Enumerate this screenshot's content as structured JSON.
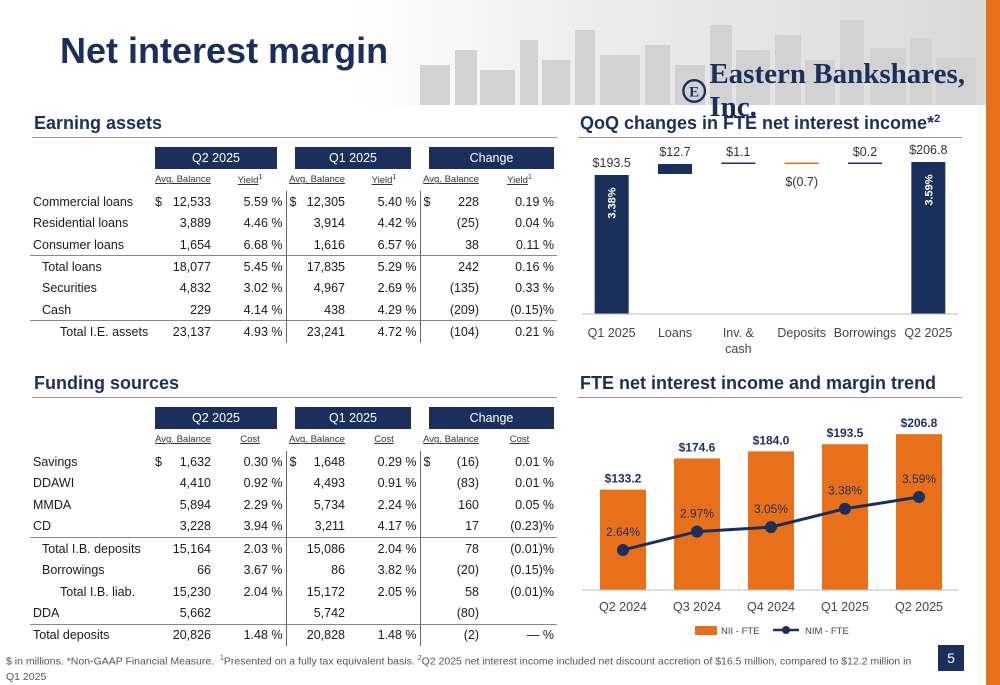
{
  "page": {
    "title": "Net interest margin",
    "brand": "Eastern Bankshares, Inc.",
    "page_number": "5",
    "footnote_1": "$ in millions. *Non-GAAP Financial Measure.",
    "footnote_2": "Presented on a fully tax equivalent basis.",
    "footnote_3": "Q2 2025 net interest income included net discount accretion of $16.5 million, compared to $12.2 million in Q1 2025",
    "colors": {
      "navy": "#1b2f5c",
      "orange": "#e8701a"
    }
  },
  "earning": {
    "title": "Earning assets",
    "periods": [
      "Q2 2025",
      "Q1 2025",
      "Change"
    ],
    "sub": [
      "Avg. Balance",
      "Yield",
      "Avg. Balance",
      "Yield",
      "Avg. Balance",
      "Yield"
    ],
    "rows": [
      {
        "label": "Commercial loans",
        "c1": "$",
        "v1": "12,533",
        "v2": "5.59 %",
        "c3": "$",
        "v3": "12,305",
        "v4": "5.40 %",
        "c5": "$",
        "v5": "228",
        "v6": "0.19 %"
      },
      {
        "label": "Residential loans",
        "c1": "",
        "v1": "3,889",
        "v2": "4.46 %",
        "c3": "",
        "v3": "3,914",
        "v4": "4.42 %",
        "c5": "",
        "v5": "(25)",
        "v6": "0.04 %"
      },
      {
        "label": "Consumer loans",
        "c1": "",
        "v1": "1,654",
        "v2": "6.68 %",
        "c3": "",
        "v3": "1,616",
        "v4": "6.57 %",
        "c5": "",
        "v5": "38",
        "v6": "0.11 %"
      },
      {
        "label": "Total loans",
        "c1": "",
        "v1": "18,077",
        "v2": "5.45 %",
        "c3": "",
        "v3": "17,835",
        "v4": "5.29 %",
        "c5": "",
        "v5": "242",
        "v6": "0.16 %"
      },
      {
        "label": "Securities",
        "c1": "",
        "v1": "4,832",
        "v2": "3.02 %",
        "c3": "",
        "v3": "4,967",
        "v4": "2.69 %",
        "c5": "",
        "v5": "(135)",
        "v6": "0.33 %"
      },
      {
        "label": "Cash",
        "c1": "",
        "v1": "229",
        "v2": "4.14 %",
        "c3": "",
        "v3": "438",
        "v4": "4.29 %",
        "c5": "",
        "v5": "(209)",
        "v6": "(0.15)%"
      },
      {
        "label": "Total I.E. assets",
        "c1": "",
        "v1": "23,137",
        "v2": "4.93 %",
        "c3": "",
        "v3": "23,241",
        "v4": "4.72 %",
        "c5": "",
        "v5": "(104)",
        "v6": "0.21 %"
      }
    ]
  },
  "funding": {
    "title": "Funding sources",
    "periods": [
      "Q2 2025",
      "Q1 2025",
      "Change"
    ],
    "sub": [
      "Avg. Balance",
      "Cost",
      "Avg. Balance",
      "Cost",
      "Avg. Balance",
      "Cost"
    ],
    "rows": [
      {
        "label": "Savings",
        "c1": "$",
        "v1": "1,632",
        "v2": "0.30 %",
        "c3": "$",
        "v3": "1,648",
        "v4": "0.29 %",
        "c5": "$",
        "v5": "(16)",
        "v6": "0.01 %"
      },
      {
        "label": "DDAWI",
        "c1": "",
        "v1": "4,410",
        "v2": "0.92 %",
        "c3": "",
        "v3": "4,493",
        "v4": "0.91 %",
        "c5": "",
        "v5": "(83)",
        "v6": "0.01 %"
      },
      {
        "label": "MMDA",
        "c1": "",
        "v1": "5,894",
        "v2": "2.29 %",
        "c3": "",
        "v3": "5,734",
        "v4": "2.24 %",
        "c5": "",
        "v5": "160",
        "v6": "0.05 %"
      },
      {
        "label": "CD",
        "c1": "",
        "v1": "3,228",
        "v2": "3.94 %",
        "c3": "",
        "v3": "3,211",
        "v4": "4.17 %",
        "c5": "",
        "v5": "17",
        "v6": "(0.23)%"
      },
      {
        "label": "Total I.B. deposits",
        "c1": "",
        "v1": "15,164",
        "v2": "2.03 %",
        "c3": "",
        "v3": "15,086",
        "v4": "2.04 %",
        "c5": "",
        "v5": "78",
        "v6": "(0.01)%"
      },
      {
        "label": "Borrowings",
        "c1": "",
        "v1": "66",
        "v2": "3.67 %",
        "c3": "",
        "v3": "86",
        "v4": "3.82 %",
        "c5": "",
        "v5": "(20)",
        "v6": "(0.15)%"
      },
      {
        "label": "Total I.B. liab.",
        "c1": "",
        "v1": "15,230",
        "v2": "2.04 %",
        "c3": "",
        "v3": "15,172",
        "v4": "2.05 %",
        "c5": "",
        "v5": "58",
        "v6": "(0.01)%"
      },
      {
        "label": "DDA",
        "c1": "",
        "v1": "5,662",
        "v2": "",
        "c3": "",
        "v3": "5,742",
        "v4": "",
        "c5": "",
        "v5": "(80)",
        "v6": ""
      },
      {
        "label": "Total deposits",
        "c1": "",
        "v1": "20,826",
        "v2": "1.48 %",
        "c3": "",
        "v3": "20,828",
        "v4": "1.48 %",
        "c5": "",
        "v5": "(2)",
        "v6": "— %"
      }
    ]
  },
  "chart_data": [
    {
      "type": "bar",
      "title": "QoQ changes in FTE net interest income*2",
      "categories": [
        "Q1 2025",
        "Loans",
        "Inv. & cash",
        "Deposits",
        "Borrowings",
        "Q2 2025"
      ],
      "values": [
        193.5,
        12.7,
        1.1,
        -0.7,
        0.2,
        206.8
      ],
      "labels": [
        "$193.5",
        "$12.7",
        "$1.1",
        "$(0.7)",
        "$0.2",
        "$206.8"
      ],
      "bar_annotations": [
        "3.38%",
        "",
        "",
        "",
        "",
        "3.59%"
      ],
      "waterfall": true,
      "colors": {
        "totals": "#1b2f5c",
        "increase": "#1b2f5c",
        "decrease": "#e8701a"
      }
    },
    {
      "type": "bar",
      "title": "FTE net interest income and margin trend",
      "categories": [
        "Q2 2024",
        "Q3 2024",
        "Q4 2024",
        "Q1 2025",
        "Q2 2025"
      ],
      "series": [
        {
          "name": "NII - FTE",
          "values": [
            133.2,
            174.6,
            184.0,
            193.5,
            206.8
          ],
          "labels": [
            "$133.2",
            "$174.6",
            "$184.0",
            "$193.5",
            "$206.8"
          ],
          "color": "#e8701a"
        },
        {
          "name": "NIM - FTE",
          "type": "line",
          "values": [
            2.64,
            2.97,
            3.05,
            3.38,
            3.59
          ],
          "labels": [
            "2.64%",
            "2.97%",
            "3.05%",
            "3.38%",
            "3.59%"
          ],
          "color": "#1b2f5c"
        }
      ],
      "legend": "bottom"
    }
  ]
}
